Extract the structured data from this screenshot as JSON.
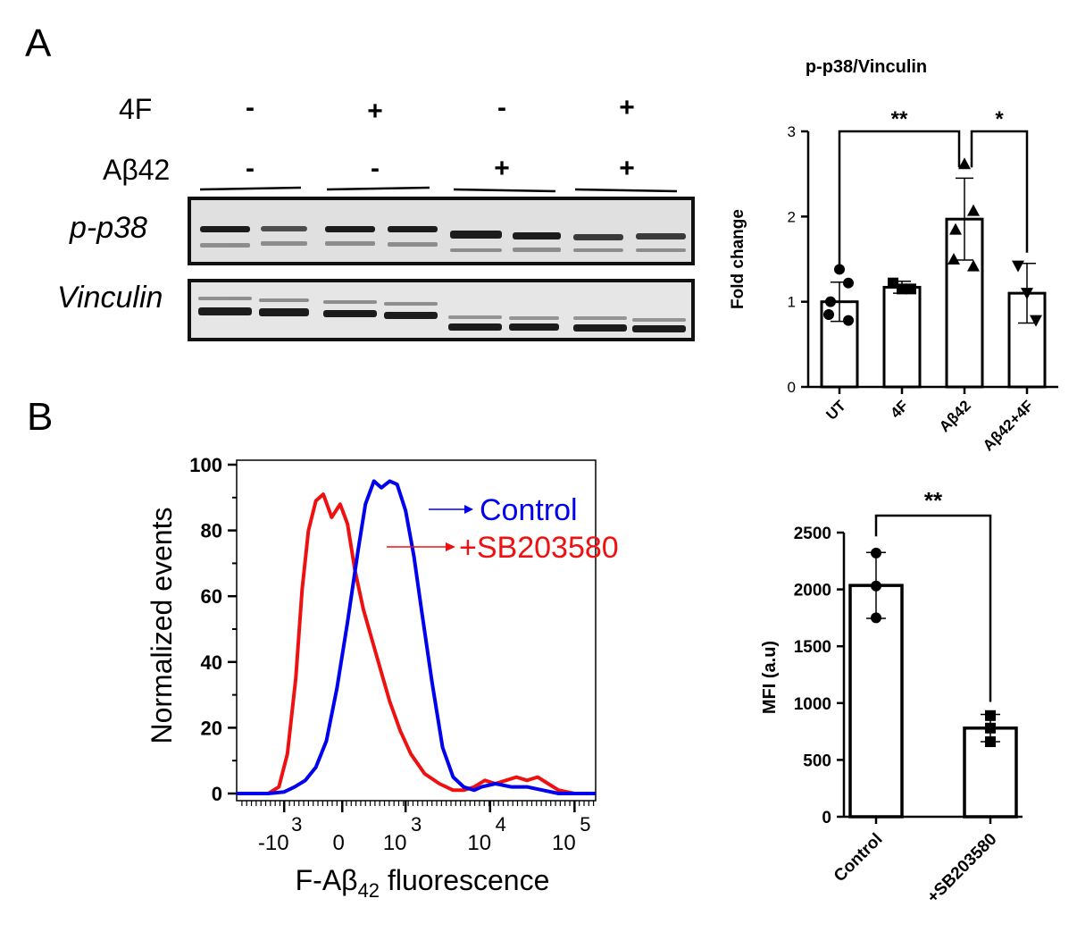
{
  "panel_a": {
    "letter": "A",
    "treatments": [
      {
        "label": "4F",
        "signs": [
          "-",
          "+",
          "-",
          "+"
        ]
      },
      {
        "label": "Aβ42",
        "signs": [
          "-",
          "-",
          "+",
          "+"
        ]
      }
    ],
    "blot_labels": [
      "p-p38",
      "Vinculin"
    ]
  },
  "panel_b": {
    "letter": "B",
    "legend": {
      "control": "Control",
      "treated": "+SB203580",
      "control_color": "#0000ee",
      "treated_color": "#ee1111"
    }
  },
  "chart_data": [
    {
      "type": "bar",
      "title": "p-p38/Vinculin",
      "ylabel": "Fold change",
      "categories": [
        "UT",
        "4F",
        "Aβ42",
        "Aβ42+4F"
      ],
      "values": [
        1.0,
        1.17,
        1.97,
        1.1
      ],
      "errors": [
        0.23,
        0.07,
        0.48,
        0.35
      ],
      "points": [
        [
          1.38,
          1.22,
          1.0,
          0.85,
          0.78
        ],
        [
          1.22,
          1.15,
          1.15
        ],
        [
          2.62,
          2.07,
          1.85,
          1.5,
          1.42
        ],
        [
          1.42,
          1.1,
          0.78
        ]
      ],
      "markers": [
        "circle",
        "square",
        "triangle",
        "triangle-down"
      ],
      "ylim": [
        0,
        3
      ],
      "yticks": [
        "0",
        "1",
        "2",
        "3"
      ],
      "significance": [
        {
          "from": "UT",
          "to": "Aβ42",
          "label": "**"
        },
        {
          "from": "Aβ42",
          "to": "Aβ42+4F",
          "label": "*"
        }
      ]
    },
    {
      "type": "line",
      "xlabel_main": "F-Aβ",
      "xlabel_sub": "42",
      "xlabel_tail": " fluorescence",
      "ylabel": "Normalized events",
      "ylim": [
        0,
        100
      ],
      "yticks": [
        "100",
        "80",
        "60",
        "40",
        "20",
        "0"
      ],
      "xticks": [
        {
          "base": "-10",
          "exp": "3"
        },
        {
          "base": "0",
          "exp": ""
        },
        {
          "base": "10",
          "exp": "3"
        },
        {
          "base": "10",
          "exp": "4"
        },
        {
          "base": "10",
          "exp": "5"
        }
      ],
      "series": [
        {
          "name": "Control",
          "color": "#0000ee",
          "x": [
            0.0,
            0.3,
            0.45,
            0.55,
            0.65,
            0.75,
            0.85,
            0.95,
            1.05,
            1.15,
            1.22,
            1.3,
            1.37,
            1.45,
            1.52,
            1.6,
            1.68,
            1.75,
            1.85,
            1.95,
            2.05,
            2.15,
            2.25,
            2.32,
            2.45,
            2.6,
            2.75,
            2.9,
            3.05,
            3.2,
            3.4
          ],
          "y": [
            0,
            0,
            0.5,
            2,
            4,
            8,
            16,
            32,
            52,
            74,
            88,
            95,
            93,
            95,
            94,
            86,
            72,
            56,
            34,
            14,
            5,
            2,
            1,
            2,
            3,
            2,
            2,
            1,
            0,
            0,
            0
          ]
        },
        {
          "name": "+SB203580",
          "color": "#ee1111",
          "x": [
            0.0,
            0.3,
            0.4,
            0.48,
            0.56,
            0.62,
            0.68,
            0.75,
            0.82,
            0.9,
            0.98,
            1.05,
            1.12,
            1.2,
            1.28,
            1.36,
            1.45,
            1.55,
            1.65,
            1.78,
            1.92,
            2.05,
            2.15,
            2.25,
            2.35,
            2.45,
            2.55,
            2.65,
            2.75,
            2.85,
            2.95,
            3.05,
            3.2,
            3.4
          ],
          "y": [
            0,
            0,
            2,
            12,
            35,
            62,
            80,
            89,
            91,
            84,
            88,
            82,
            68,
            56,
            47,
            38,
            28,
            19,
            12,
            6,
            3,
            1,
            1,
            2,
            4,
            3,
            4,
            5,
            4,
            5,
            3,
            1,
            0,
            0
          ]
        }
      ]
    },
    {
      "type": "bar",
      "ylabel": "MFI (a.u)",
      "categories": [
        "Control",
        "+SB203580"
      ],
      "values": [
        2035,
        780
      ],
      "errors": [
        290,
        120
      ],
      "points": [
        [
          2320,
          2030,
          1750
        ],
        [
          890,
          780,
          660
        ]
      ],
      "markers": [
        "circle",
        "square"
      ],
      "ylim": [
        0,
        2500
      ],
      "yticks": [
        "0",
        "500",
        "1000",
        "1500",
        "2000",
        "2500"
      ],
      "significance": [
        {
          "from": "Control",
          "to": "+SB203580",
          "label": "**"
        }
      ]
    }
  ]
}
